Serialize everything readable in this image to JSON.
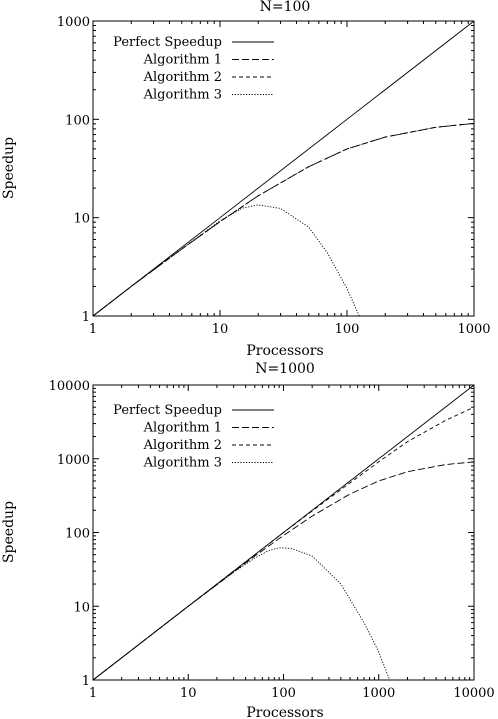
{
  "chart_data": [
    {
      "type": "line",
      "title": "N=100",
      "xlabel": "Processors",
      "ylabel": "Speedup",
      "xscale": "log",
      "yscale": "log",
      "xlim": [
        1,
        1000
      ],
      "ylim": [
        1,
        1000
      ],
      "xticks": [
        "1",
        "10",
        "100",
        "1000"
      ],
      "yticks": [
        "1",
        "10",
        "100",
        "1000"
      ],
      "grid": false,
      "legend_position": "top-left",
      "series": [
        {
          "name": "Perfect Speedup",
          "style": "solid",
          "points": [
            [
              1,
              1
            ],
            [
              10,
              10
            ],
            [
              100,
              100
            ],
            [
              1000,
              1000
            ]
          ]
        },
        {
          "name": "Algorithm 1",
          "style": "long-dash",
          "points": [
            [
              1,
              1
            ],
            [
              2,
              2
            ],
            [
              5,
              4.8
            ],
            [
              10,
              9.1
            ],
            [
              20,
              16.7
            ],
            [
              50,
              33
            ],
            [
              100,
              50
            ],
            [
              200,
              66
            ],
            [
              500,
              83
            ],
            [
              1000,
              91
            ]
          ]
        },
        {
          "name": "Algorithm 2",
          "style": "short-dash",
          "points": [
            [
              1,
              1
            ],
            [
              2,
              2
            ],
            [
              5,
              4.8
            ],
            [
              10,
              9.1
            ],
            [
              20,
              16.7
            ],
            [
              50,
              33
            ],
            [
              100,
              50
            ],
            [
              200,
              66
            ],
            [
              500,
              83
            ],
            [
              1000,
              91
            ]
          ]
        },
        {
          "name": "Algorithm 3",
          "style": "dotted",
          "points": [
            [
              1,
              1
            ],
            [
              2,
              2
            ],
            [
              5,
              4.8
            ],
            [
              10,
              9.3
            ],
            [
              15,
              12.5
            ],
            [
              20,
              13.5
            ],
            [
              30,
              12.4
            ],
            [
              50,
              8
            ],
            [
              70,
              4.4
            ],
            [
              100,
              1.9
            ],
            [
              125,
              1.0
            ]
          ]
        }
      ]
    },
    {
      "type": "line",
      "title": "N=1000",
      "xlabel": "Processors",
      "ylabel": "Speedup",
      "xscale": "log",
      "yscale": "log",
      "xlim": [
        1,
        10000
      ],
      "ylim": [
        1,
        10000
      ],
      "xticks": [
        "1",
        "10",
        "100",
        "1000",
        "10000"
      ],
      "yticks": [
        "1",
        "10",
        "100",
        "1000",
        "10000"
      ],
      "grid": false,
      "legend_position": "top-left",
      "series": [
        {
          "name": "Perfect Speedup",
          "style": "solid",
          "points": [
            [
              1,
              1
            ],
            [
              10,
              10
            ],
            [
              100,
              100
            ],
            [
              1000,
              1000
            ],
            [
              10000,
              10000
            ]
          ]
        },
        {
          "name": "Algorithm 1",
          "style": "long-dash",
          "points": [
            [
              1,
              1
            ],
            [
              10,
              10
            ],
            [
              50,
              48
            ],
            [
              100,
              91
            ],
            [
              200,
              167
            ],
            [
              500,
              333
            ],
            [
              1000,
              500
            ],
            [
              2000,
              667
            ],
            [
              5000,
              833
            ],
            [
              10000,
              909
            ]
          ]
        },
        {
          "name": "Algorithm 2",
          "style": "short-dash",
          "points": [
            [
              1,
              1
            ],
            [
              10,
              10
            ],
            [
              100,
              100
            ],
            [
              300,
              290
            ],
            [
              1000,
              910
            ],
            [
              2000,
              1700
            ],
            [
              5000,
              3300
            ],
            [
              10000,
              5000
            ]
          ]
        },
        {
          "name": "Algorithm 3",
          "style": "dotted",
          "points": [
            [
              1,
              1
            ],
            [
              10,
              10
            ],
            [
              30,
              29
            ],
            [
              50,
              45
            ],
            [
              70,
              57
            ],
            [
              90,
              62
            ],
            [
              120,
              61
            ],
            [
              200,
              48
            ],
            [
              400,
              20
            ],
            [
              700,
              6
            ],
            [
              1000,
              2.4
            ],
            [
              1300,
              1.0
            ]
          ]
        }
      ]
    }
  ]
}
